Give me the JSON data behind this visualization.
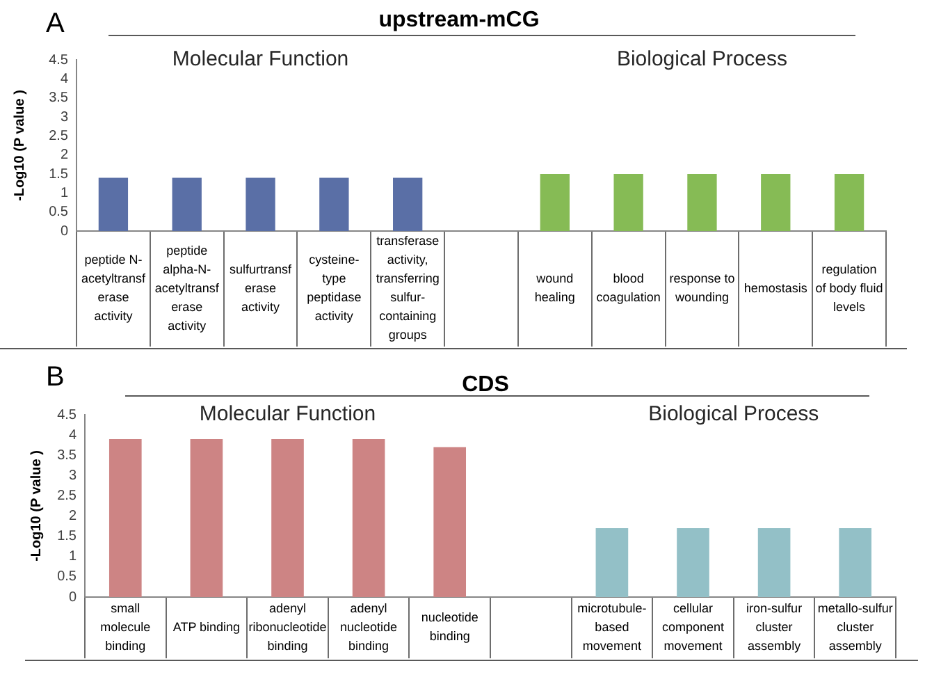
{
  "chart_data": [
    {
      "type": "bar",
      "title": "upstream-mCG",
      "ylabel": "-Log10 (P value )",
      "categories": [
        "peptide N-acetyltransferase activity",
        "peptide alpha-N-acetyltransferase activity",
        "sulfurtransferase activity",
        "cysteine-type peptidase activity",
        "transferase activity, transferring sulfur-containing groups",
        null,
        "wound healing",
        "blood coagulation",
        "response to wounding",
        "hemostasis",
        "regulation of body fluid levels"
      ],
      "values": [
        1.4,
        1.4,
        1.4,
        1.4,
        1.4,
        null,
        1.5,
        1.5,
        1.5,
        1.5,
        1.5
      ],
      "colors": [
        "#5a6fa6",
        "#5a6fa6",
        "#5a6fa6",
        "#5a6fa6",
        "#5a6fa6",
        null,
        "#86bb55",
        "#86bb55",
        "#86bb55",
        "#86bb55",
        "#86bb55"
      ],
      "ylim": [
        0,
        4.5
      ],
      "yticks": [
        0,
        0.5,
        1,
        1.5,
        2,
        2.5,
        3,
        3.5,
        4,
        4.5
      ],
      "grid": false,
      "annotations": [
        "A",
        "Molecular Function",
        "Biological Process"
      ]
    },
    {
      "type": "bar",
      "title": "CDS",
      "ylabel": "-Log10 (P value )",
      "categories": [
        "small molecule binding",
        "ATP binding",
        "adenyl ribonucleotide binding",
        "adenyl nucleotide binding",
        "nucleotide binding",
        null,
        "microtubule-based movement",
        "cellular component movement",
        "iron-sulfur cluster assembly",
        "metallo-sulfur cluster assembly"
      ],
      "values": [
        3.9,
        3.9,
        3.9,
        3.9,
        3.7,
        null,
        1.7,
        1.7,
        1.7,
        1.7
      ],
      "colors": [
        "#cd8484",
        "#cd8484",
        "#cd8484",
        "#cd8484",
        "#cd8484",
        null,
        "#93c0c7",
        "#93c0c7",
        "#93c0c7",
        "#93c0c7"
      ],
      "ylim": [
        0,
        4.5
      ],
      "yticks": [
        0,
        0.5,
        1,
        1.5,
        2,
        2.5,
        3,
        3.5,
        4,
        4.5
      ],
      "grid": false,
      "annotations": [
        "B",
        "Molecular Function",
        "Biological Process"
      ]
    }
  ]
}
